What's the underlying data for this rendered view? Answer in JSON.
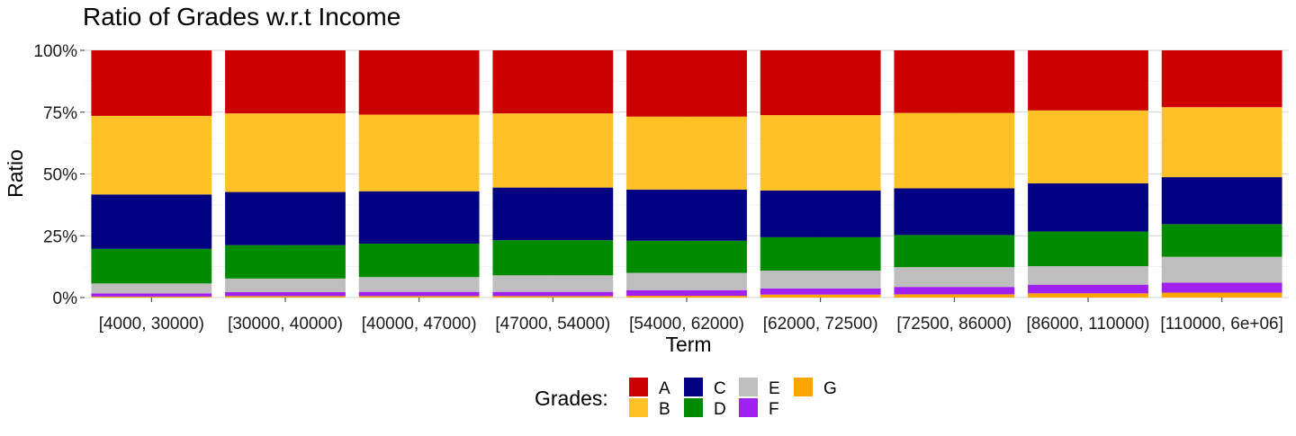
{
  "chart_data": {
    "type": "bar",
    "stacked": "percent",
    "title": "Ratio of Grades w.r.t Income",
    "xlabel": "Term",
    "ylabel": "Ratio",
    "yticks": [
      "0%",
      "25%",
      "50%",
      "75%",
      "100%"
    ],
    "ylim": [
      0,
      1
    ],
    "grid": true,
    "legend": {
      "title": "Grades:",
      "position": "bottom"
    },
    "categories": [
      "[4000, 30000)",
      "[30000, 40000)",
      "[40000, 47000)",
      "[47000, 54000)",
      "[54000, 62000)",
      "[62000, 72500)",
      "[72500, 86000)",
      "[86000, 110000)",
      "[110000, 6e+06]"
    ],
    "series": [
      {
        "name": "A",
        "color": "#CC0000",
        "values": [
          0.265,
          0.255,
          0.26,
          0.255,
          0.268,
          0.262,
          0.253,
          0.243,
          0.23
        ]
      },
      {
        "name": "B",
        "color": "#FFC125",
        "values": [
          0.318,
          0.318,
          0.31,
          0.3,
          0.295,
          0.305,
          0.305,
          0.295,
          0.283
        ]
      },
      {
        "name": "C",
        "color": "#000080",
        "values": [
          0.22,
          0.215,
          0.212,
          0.213,
          0.207,
          0.189,
          0.189,
          0.195,
          0.19
        ]
      },
      {
        "name": "D",
        "color": "#008B00",
        "values": [
          0.14,
          0.135,
          0.135,
          0.142,
          0.13,
          0.135,
          0.13,
          0.14,
          0.132
        ]
      },
      {
        "name": "E",
        "color": "#BEBEBE",
        "values": [
          0.04,
          0.055,
          0.06,
          0.067,
          0.07,
          0.072,
          0.08,
          0.075,
          0.105
        ]
      },
      {
        "name": "F",
        "color": "#A020F0",
        "values": [
          0.013,
          0.016,
          0.017,
          0.017,
          0.023,
          0.025,
          0.03,
          0.035,
          0.04
        ]
      },
      {
        "name": "G",
        "color": "#FFA500",
        "values": [
          0.004,
          0.006,
          0.006,
          0.006,
          0.007,
          0.012,
          0.013,
          0.017,
          0.02
        ]
      }
    ]
  }
}
